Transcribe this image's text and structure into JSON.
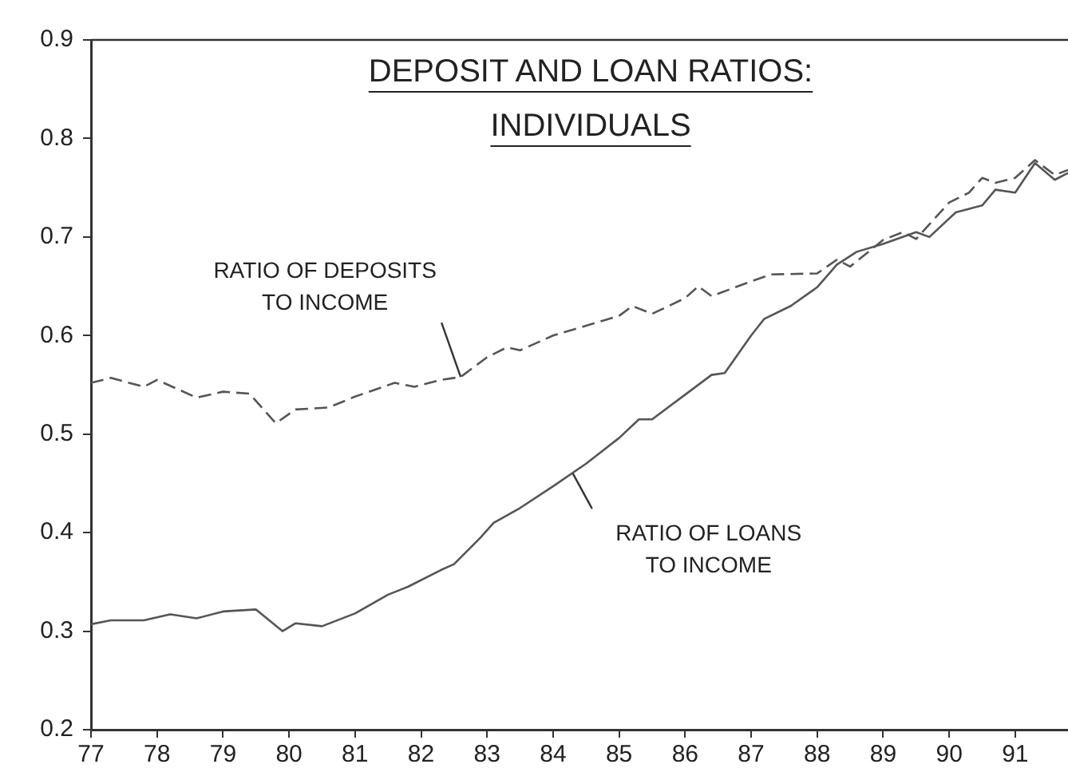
{
  "chart_data": {
    "type": "line",
    "title": "DEPOSIT AND LOAN RATIOS: INDIVIDUALS",
    "xlim": [
      77,
      91.8
    ],
    "xticks": [
      77,
      78,
      79,
      80,
      81,
      82,
      83,
      84,
      85,
      86,
      87,
      88,
      89,
      90,
      91
    ],
    "ylim": [
      0.2,
      0.9
    ],
    "yticks": [
      0.2,
      0.3,
      0.4,
      0.5,
      0.6,
      0.7,
      0.8,
      0.9
    ],
    "grid": false,
    "legend": false,
    "marker": "none",
    "series": [
      {
        "color": "#555555",
        "line_style": "dashed",
        "x": [
          77.0,
          77.3,
          77.8,
          78.0,
          78.6,
          79.0,
          79.4,
          79.8,
          80.1,
          80.6,
          81.0,
          81.6,
          81.9,
          82.3,
          82.6,
          83.0,
          83.3,
          83.5,
          84.0,
          84.5,
          85.0,
          85.2,
          85.5,
          86.0,
          86.2,
          86.4,
          87.0,
          87.3,
          88.0,
          88.3,
          88.5,
          89.0,
          89.3,
          89.5,
          90.0,
          90.3,
          90.5,
          90.7,
          91.0,
          91.3,
          91.6,
          91.8
        ],
        "values": [
          0.552,
          0.557,
          0.548,
          0.555,
          0.537,
          0.543,
          0.541,
          0.511,
          0.525,
          0.527,
          0.538,
          0.552,
          0.548,
          0.555,
          0.558,
          0.578,
          0.588,
          0.585,
          0.6,
          0.61,
          0.62,
          0.63,
          0.622,
          0.638,
          0.65,
          0.64,
          0.655,
          0.662,
          0.663,
          0.677,
          0.67,
          0.697,
          0.705,
          0.698,
          0.735,
          0.745,
          0.76,
          0.755,
          0.76,
          0.778,
          0.763,
          0.768
        ]
      },
      {
        "color": "#555555",
        "line_style": "solid",
        "x": [
          77.0,
          77.3,
          77.8,
          78.2,
          78.6,
          79.0,
          79.5,
          79.9,
          80.1,
          80.5,
          81.0,
          81.5,
          81.8,
          82.3,
          82.5,
          82.9,
          83.1,
          83.5,
          84.0,
          84.5,
          85.0,
          85.3,
          85.5,
          86.0,
          86.4,
          86.6,
          87.0,
          87.2,
          87.6,
          88.0,
          88.3,
          88.6,
          89.0,
          89.5,
          89.7,
          90.1,
          90.5,
          90.7,
          91.0,
          91.3,
          91.6,
          91.8
        ],
        "values": [
          0.307,
          0.311,
          0.311,
          0.317,
          0.313,
          0.32,
          0.322,
          0.3,
          0.308,
          0.305,
          0.318,
          0.337,
          0.345,
          0.362,
          0.368,
          0.395,
          0.41,
          0.425,
          0.447,
          0.47,
          0.496,
          0.515,
          0.515,
          0.54,
          0.56,
          0.562,
          0.6,
          0.617,
          0.63,
          0.649,
          0.672,
          0.685,
          0.693,
          0.705,
          0.7,
          0.725,
          0.732,
          0.748,
          0.745,
          0.775,
          0.758,
          0.765
        ]
      }
    ],
    "annotations": [
      {
        "text": "RATIO OF DEPOSITS TO INCOME",
        "x": 82.6,
        "y": 0.558
      },
      {
        "text": "RATIO OF LOANS TO INCOME",
        "x": 84.3,
        "y": 0.46
      }
    ]
  }
}
